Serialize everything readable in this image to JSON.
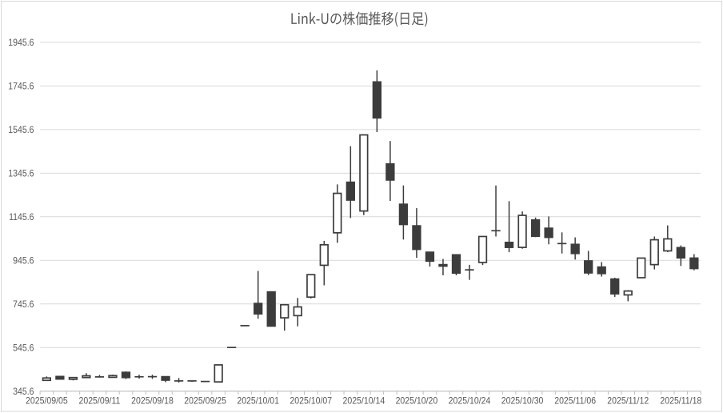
{
  "page": {
    "background": "#ffffff",
    "border_color": "#d9d9d9"
  },
  "chart_data": {
    "type": "candlestick",
    "title": "Link-Uの株価推移(日足)",
    "x": [
      "2025/09/05",
      "2025/09/08",
      "2025/09/09",
      "2025/09/10",
      "2025/09/11",
      "2025/09/12",
      "2025/09/16",
      "2025/09/17",
      "2025/09/18",
      "2025/09/19",
      "2025/09/22",
      "2025/09/24",
      "2025/09/25",
      "2025/09/26",
      "2025/09/29",
      "2025/09/30",
      "2025/10/01",
      "2025/10/02",
      "2025/10/03",
      "2025/10/06",
      "2025/10/07",
      "2025/10/08",
      "2025/10/09",
      "2025/10/10",
      "2025/10/14",
      "2025/10/15",
      "2025/10/16",
      "2025/10/17",
      "2025/10/20",
      "2025/10/21",
      "2025/10/22",
      "2025/10/23",
      "2025/10/24",
      "2025/10/27",
      "2025/10/28",
      "2025/10/29",
      "2025/10/30",
      "2025/10/31",
      "2025/11/04",
      "2025/11/05",
      "2025/11/06",
      "2025/11/07",
      "2025/11/10",
      "2025/11/11",
      "2025/11/12",
      "2025/11/13",
      "2025/11/14",
      "2025/11/17",
      "2025/11/18",
      "2025/11/19"
    ],
    "ohlc_order": [
      "open",
      "high",
      "low",
      "close"
    ],
    "ohlc": [
      [
        395,
        413,
        394,
        406
      ],
      [
        413,
        413,
        401,
        401
      ],
      [
        400,
        408,
        395,
        408
      ],
      [
        408,
        428,
        408,
        416
      ],
      [
        413,
        420,
        408,
        409
      ],
      [
        409,
        421,
        409,
        417
      ],
      [
        432,
        436,
        401,
        408
      ],
      [
        413,
        421,
        403,
        410
      ],
      [
        411,
        421,
        402,
        413
      ],
      [
        412,
        412,
        387,
        396
      ],
      [
        394,
        406,
        385,
        391
      ],
      [
        394,
        394,
        388,
        391
      ],
      [
        390,
        392,
        388,
        390
      ],
      [
        388,
        466,
        388,
        466
      ],
      [
        546,
        546,
        546,
        546
      ],
      [
        646,
        646,
        646,
        646
      ],
      [
        748,
        897,
        678,
        700
      ],
      [
        801,
        801,
        644,
        644
      ],
      [
        682,
        745,
        623,
        742
      ],
      [
        692,
        773,
        643,
        732
      ],
      [
        777,
        880,
        771,
        880
      ],
      [
        923,
        1035,
        831,
        1017
      ],
      [
        1072,
        1294,
        1026,
        1253
      ],
      [
        1304,
        1469,
        1140,
        1222
      ],
      [
        1172,
        1521,
        1153,
        1521
      ],
      [
        1764,
        1817,
        1534,
        1599
      ],
      [
        1388,
        1493,
        1218,
        1314
      ],
      [
        1203,
        1289,
        1041,
        1110
      ],
      [
        1104,
        1185,
        957,
        996
      ],
      [
        983,
        983,
        917,
        942
      ],
      [
        926,
        952,
        877,
        919
      ],
      [
        971,
        971,
        877,
        887
      ],
      [
        905,
        925,
        856,
        899
      ],
      [
        936,
        1055,
        924,
        1055
      ],
      [
        1084,
        1289,
        1055,
        1079
      ],
      [
        1028,
        1217,
        983,
        1005
      ],
      [
        1005,
        1170,
        999,
        1152
      ],
      [
        1131,
        1142,
        1052,
        1056
      ],
      [
        1093,
        1147,
        1019,
        1051
      ],
      [
        1024,
        1074,
        977,
        1021
      ],
      [
        1019,
        1051,
        949,
        977
      ],
      [
        943,
        989,
        878,
        888
      ],
      [
        915,
        938,
        871,
        885
      ],
      [
        860,
        866,
        778,
        792
      ],
      [
        787,
        809,
        758,
        805
      ],
      [
        866,
        956,
        866,
        956
      ],
      [
        926,
        1055,
        904,
        1040
      ],
      [
        989,
        1106,
        983,
        1044
      ],
      [
        1004,
        1014,
        920,
        957
      ],
      [
        956,
        974,
        900,
        908
      ]
    ],
    "x_axis": {
      "tick_labels": [
        "2025/09/05",
        "2025/09/11",
        "2025/09/18",
        "2025/09/25",
        "2025/10/01",
        "2025/10/07",
        "2025/10/14",
        "2025/10/20",
        "2025/10/24",
        "2025/10/30",
        "2025/11/06",
        "2025/11/12",
        "2025/11/18"
      ],
      "label_interval": 4
    },
    "y_axis": {
      "min": 345.6,
      "max": 1945.6,
      "tick_interval": 200,
      "tick_labels": [
        "345.6",
        "545.6",
        "745.6",
        "945.6",
        "1145.6",
        "1345.6",
        "1545.6",
        "1745.6",
        "1945.6"
      ]
    },
    "grid": true,
    "legend": "none",
    "colors": {
      "up_fill": "#ffffff",
      "down_fill": "#3c3c3c",
      "outline": "#3c3c3c",
      "wick": "#3c3c3c",
      "grid": "#d9d9d9",
      "axis": "#bfbfbf",
      "label": "#595959",
      "title": "#595959"
    }
  }
}
